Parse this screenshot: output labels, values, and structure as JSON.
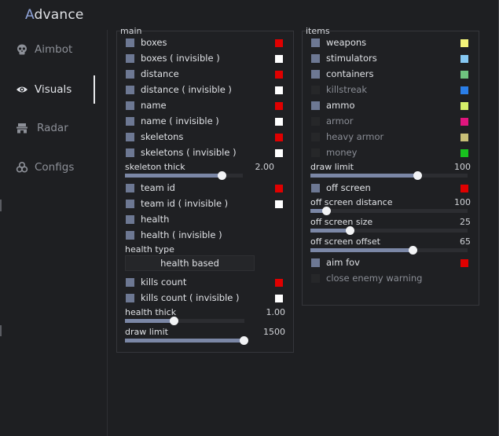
{
  "app": {
    "title_prefix": "A",
    "title_rest": "dvance",
    "accent_color": "#8fa3d8"
  },
  "sidebar": {
    "items": [
      {
        "label": "Aimbot",
        "icon": "skull-icon",
        "active": false
      },
      {
        "label": "Visuals",
        "icon": "eye-icon",
        "active": true
      },
      {
        "label": "Radar",
        "icon": "radar-icon",
        "active": false
      },
      {
        "label": "Configs",
        "icon": "biohazard-icon",
        "active": false
      }
    ]
  },
  "main": {
    "title": "main",
    "toggles": [
      {
        "label": "boxes",
        "checked": true,
        "color": "#e00000"
      },
      {
        "label": "boxes ( invisible )",
        "checked": true,
        "color": "#ffffff"
      },
      {
        "label": "distance",
        "checked": true,
        "color": "#e00000"
      },
      {
        "label": "distance ( invisible )",
        "checked": true,
        "color": "#ffffff"
      },
      {
        "label": "name",
        "checked": true,
        "color": "#e00000"
      },
      {
        "label": "name ( invisible )",
        "checked": true,
        "color": "#ffffff"
      },
      {
        "label": "skeletons",
        "checked": true,
        "color": "#e00000"
      },
      {
        "label": "skeletons ( invisible )",
        "checked": true,
        "color": "#ffffff"
      }
    ],
    "skeleton_thick": {
      "label": "skeleton thick",
      "value": "2.00",
      "fraction": 0.82
    },
    "toggles2": [
      {
        "label": "team id",
        "checked": true,
        "color": "#e00000"
      },
      {
        "label": "team id ( invisible )",
        "checked": true,
        "color": "#ffffff"
      },
      {
        "label": "health",
        "checked": true,
        "color": ""
      },
      {
        "label": "health ( invisible )",
        "checked": true,
        "color": ""
      }
    ],
    "health_type": {
      "label": "health type",
      "value": "health based"
    },
    "toggles3": [
      {
        "label": "kills count",
        "checked": true,
        "color": "#e00000"
      },
      {
        "label": "kills count ( invisible )",
        "checked": true,
        "color": "#ffffff"
      }
    ],
    "health_thick": {
      "label": "health thick",
      "value": "1.00",
      "fraction": 0.41
    },
    "draw_limit": {
      "label": "draw limit",
      "value": "1500",
      "fraction": 0.99
    }
  },
  "items": {
    "title": "items",
    "toggles": [
      {
        "label": "weapons",
        "checked": true,
        "color": "#f4f47a"
      },
      {
        "label": "stimulators",
        "checked": true,
        "color": "#86c8f3"
      },
      {
        "label": "containers",
        "checked": true,
        "color": "#6fc47f"
      },
      {
        "label": "killstreak",
        "checked": false,
        "color": "#2a7ee8"
      },
      {
        "label": "ammo",
        "checked": true,
        "color": "#d6f06a"
      },
      {
        "label": "armor",
        "checked": false,
        "color": "#e0157e"
      },
      {
        "label": "heavy armor",
        "checked": false,
        "color": "#c8bf78"
      },
      {
        "label": "money",
        "checked": false,
        "color": "#18c21e"
      }
    ],
    "draw_limit": {
      "label": "draw limit",
      "value": "100",
      "fraction": 0.68
    },
    "off_screen": {
      "label": "off screen",
      "checked": true,
      "color": "#e00000"
    },
    "off_screen_distance": {
      "label": "off screen distance",
      "value": "100",
      "fraction": 0.1
    },
    "off_screen_size": {
      "label": "off screen size",
      "value": "25",
      "fraction": 0.25
    },
    "off_screen_offset": {
      "label": "off screen offset",
      "value": "65",
      "fraction": 0.65
    },
    "aim_fov": {
      "label": "aim fov",
      "checked": true,
      "color": "#e00000"
    },
    "close_enemy_warning": {
      "label": "close enemy warning",
      "checked": false,
      "color": ""
    }
  }
}
